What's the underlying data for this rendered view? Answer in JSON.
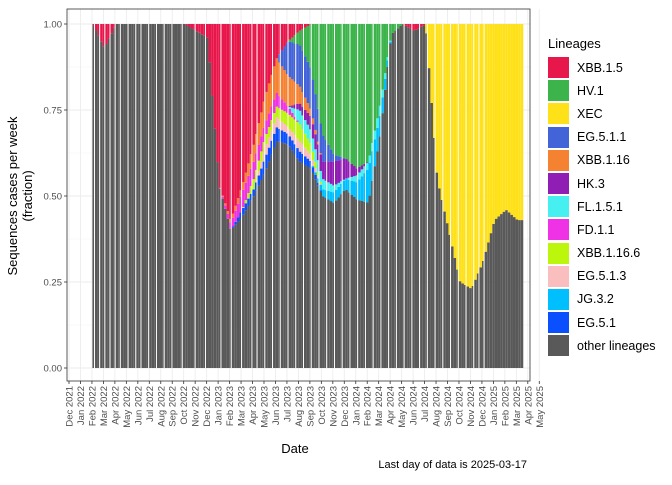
{
  "chart_data": {
    "type": "bar",
    "stacked": true,
    "xlabel": "Date",
    "ylabel": "Sequences cases per week (fraction)",
    "ylim": [
      0,
      1
    ],
    "yticks": [
      "0.00",
      "0.25",
      "0.50",
      "0.75",
      "1.00"
    ],
    "x_tick_labels": [
      "Dec 2021",
      "Jan 2022",
      "Feb 2022",
      "Mar 2022",
      "Apr 2022",
      "May 2022",
      "Jun 2022",
      "Jul 2022",
      "Aug 2022",
      "Sep 2022",
      "Oct 2022",
      "Nov 2022",
      "Dec 2022",
      "Jan 2023",
      "Feb 2023",
      "Mar 2023",
      "Apr 2023",
      "May 2023",
      "Jun 2023",
      "Jul 2023",
      "Aug 2023",
      "Sep 2023",
      "Oct 2023",
      "Nov 2023",
      "Dec 2023",
      "Jan 2024",
      "Feb 2024",
      "Mar 2024",
      "Apr 2024",
      "May 2024",
      "Jun 2024",
      "Jul 2024",
      "Aug 2024",
      "Sep 2024",
      "Oct 2024",
      "Nov 2024",
      "Dec 2024",
      "Jan 2025",
      "Feb 2025",
      "Mar 2025",
      "Apr 2025",
      "May 2025"
    ],
    "legend_title": "Lineages",
    "legend_position": "right",
    "grid": true,
    "series": [
      {
        "name": "XBB.1.5",
        "color": "#E8174B"
      },
      {
        "name": "HV.1",
        "color": "#3CB44B"
      },
      {
        "name": "XEC",
        "color": "#FFE119"
      },
      {
        "name": "EG.5.1.1",
        "color": "#4363D8"
      },
      {
        "name": "XBB.1.16",
        "color": "#F58231"
      },
      {
        "name": "HK.3",
        "color": "#911EB4"
      },
      {
        "name": "FL.1.5.1",
        "color": "#46F0F0"
      },
      {
        "name": "FD.1.1",
        "color": "#F032E6"
      },
      {
        "name": "XBB.1.16.6",
        "color": "#BCF60C"
      },
      {
        "name": "EG.5.1.3",
        "color": "#FABEBE"
      },
      {
        "name": "JG.3.2",
        "color": "#00BFFF"
      },
      {
        "name": "EG.5.1",
        "color": "#0A50FF"
      },
      {
        "name": "other lineages",
        "color": "#595959"
      }
    ],
    "monthly_fractions": [
      {
        "month": "Feb 2022",
        "other lineages": 1.0
      },
      {
        "month": "Mar 2022",
        "other lineages": 0.93,
        "XBB.1.5": 0.07
      },
      {
        "month": "Apr 2022",
        "other lineages": 1.0
      },
      {
        "month": "May 2022",
        "other lineages": 1.0
      },
      {
        "month": "Jun 2022",
        "other lineages": 1.0
      },
      {
        "month": "Jul 2022",
        "other lineages": 1.0
      },
      {
        "month": "Aug 2022",
        "other lineages": 1.0
      },
      {
        "month": "Sep 2022",
        "other lineages": 1.0
      },
      {
        "month": "Oct 2022",
        "other lineages": 1.0
      },
      {
        "month": "Nov 2022",
        "other lineages": 0.98,
        "XBB.1.5": 0.02
      },
      {
        "month": "Dec 2022",
        "other lineages": 0.96,
        "XBB.1.5": 0.04
      },
      {
        "month": "Jan 2023",
        "other lineages": 0.53,
        "XBB.1.5": 0.47
      },
      {
        "month": "Feb 2023",
        "other lineages": 0.4,
        "XBB.1.5": 0.57,
        "FD.1.1": 0.02,
        "XBB.1.16": 0.01
      },
      {
        "month": "Mar 2023",
        "other lineages": 0.44,
        "XBB.1.5": 0.47,
        "FD.1.1": 0.05,
        "XBB.1.16": 0.02,
        "EG.5.1": 0.02
      },
      {
        "month": "Apr 2023",
        "other lineages": 0.5,
        "XBB.1.5": 0.35,
        "FD.1.1": 0.05,
        "XBB.1.16": 0.05,
        "EG.5.1": 0.02,
        "XBB.1.16.6": 0.03
      },
      {
        "month": "May 2023",
        "other lineages": 0.57,
        "XBB.1.5": 0.21,
        "FD.1.1": 0.04,
        "XBB.1.16": 0.08,
        "EG.5.1": 0.04,
        "XBB.1.16.6": 0.03,
        "EG.5.1.3": 0.03
      },
      {
        "month": "Jun 2023",
        "other lineages": 0.66,
        "XBB.1.5": 0.1,
        "FD.1.1": 0.04,
        "XBB.1.16": 0.1,
        "EG.5.1": 0.04,
        "XBB.1.16.6": 0.03,
        "EG.5.1.3": 0.03
      },
      {
        "month": "Jul 2023",
        "other lineages": 0.65,
        "XBB.1.5": 0.05,
        "FD.1.1": 0.02,
        "XBB.1.16": 0.09,
        "EG.5.1": 0.03,
        "XBB.1.16.6": 0.04,
        "EG.5.1.3": 0.02,
        "EG.5.1.1": 0.1
      },
      {
        "month": "Aug 2023",
        "other lineages": 0.6,
        "XBB.1.5": 0.02,
        "XBB.1.16": 0.05,
        "EG.5.1": 0.03,
        "XBB.1.16.6": 0.05,
        "EG.5.1.3": 0.03,
        "EG.5.1.1": 0.12,
        "HK.3": 0.02,
        "FL.1.5.1": 0.04,
        "HV.1": 0.04
      },
      {
        "month": "Sep 2023",
        "other lineages": 0.58,
        "XBB.1.16": 0.02,
        "EG.5.1": 0.02,
        "XBB.1.16.6": 0.03,
        "EG.5.1.3": 0.02,
        "EG.5.1.1": 0.12,
        "HK.3": 0.04,
        "FL.1.5.1": 0.04,
        "HV.1": 0.13
      },
      {
        "month": "Oct 2023",
        "other lineages": 0.5,
        "EG.5.1.1": 0.08,
        "HK.3": 0.05,
        "FL.1.5.1": 0.03,
        "JG.3.2": 0.02,
        "HV.1": 0.32
      },
      {
        "month": "Nov 2023",
        "other lineages": 0.48,
        "EG.5.1.1": 0.02,
        "HK.3": 0.07,
        "FL.1.5.1": 0.02,
        "JG.3.2": 0.03,
        "HV.1": 0.38
      },
      {
        "month": "Dec 2023",
        "other lineages": 0.52,
        "HK.3": 0.06,
        "JG.3.2": 0.03,
        "HV.1": 0.39
      },
      {
        "month": "Jan 2024",
        "other lineages": 0.49,
        "HK.3": 0.02,
        "JG.3.2": 0.05,
        "FL.1.5.1": 0.02,
        "HV.1": 0.42
      },
      {
        "month": "Feb 2024",
        "other lineages": 0.48,
        "JG.3.2": 0.1,
        "FL.1.5.1": 0.02,
        "HV.1": 0.4
      },
      {
        "month": "Mar 2024",
        "other lineages": 0.67,
        "JG.3.2": 0.06,
        "FL.1.5.1": 0.03,
        "HV.1": 0.24
      },
      {
        "month": "Apr 2024",
        "other lineages": 0.97,
        "HV.1": 0.03
      },
      {
        "month": "May 2024",
        "other lineages": 1.0
      },
      {
        "month": "Jun 2024",
        "other lineages": 0.98,
        "XBB.1.5": 0.02
      },
      {
        "month": "Jul 2024",
        "other lineages": 1.0
      },
      {
        "month": "Aug 2024",
        "other lineages": 0.55,
        "XEC": 0.45
      },
      {
        "month": "Sep 2024",
        "other lineages": 0.4,
        "XEC": 0.6
      },
      {
        "month": "Oct 2024",
        "other lineages": 0.25,
        "XEC": 0.75
      },
      {
        "month": "Nov 2024",
        "other lineages": 0.23,
        "XEC": 0.77
      },
      {
        "month": "Dec 2024",
        "other lineages": 0.31,
        "XEC": 0.69
      },
      {
        "month": "Jan 2025",
        "other lineages": 0.43,
        "XEC": 0.57
      },
      {
        "month": "Feb 2025",
        "other lineages": 0.46,
        "XEC": 0.54
      },
      {
        "month": "Mar 2025",
        "other lineages": 0.43,
        "XEC": 0.57
      }
    ]
  },
  "caption": "Last day of data is 2025-03-17"
}
